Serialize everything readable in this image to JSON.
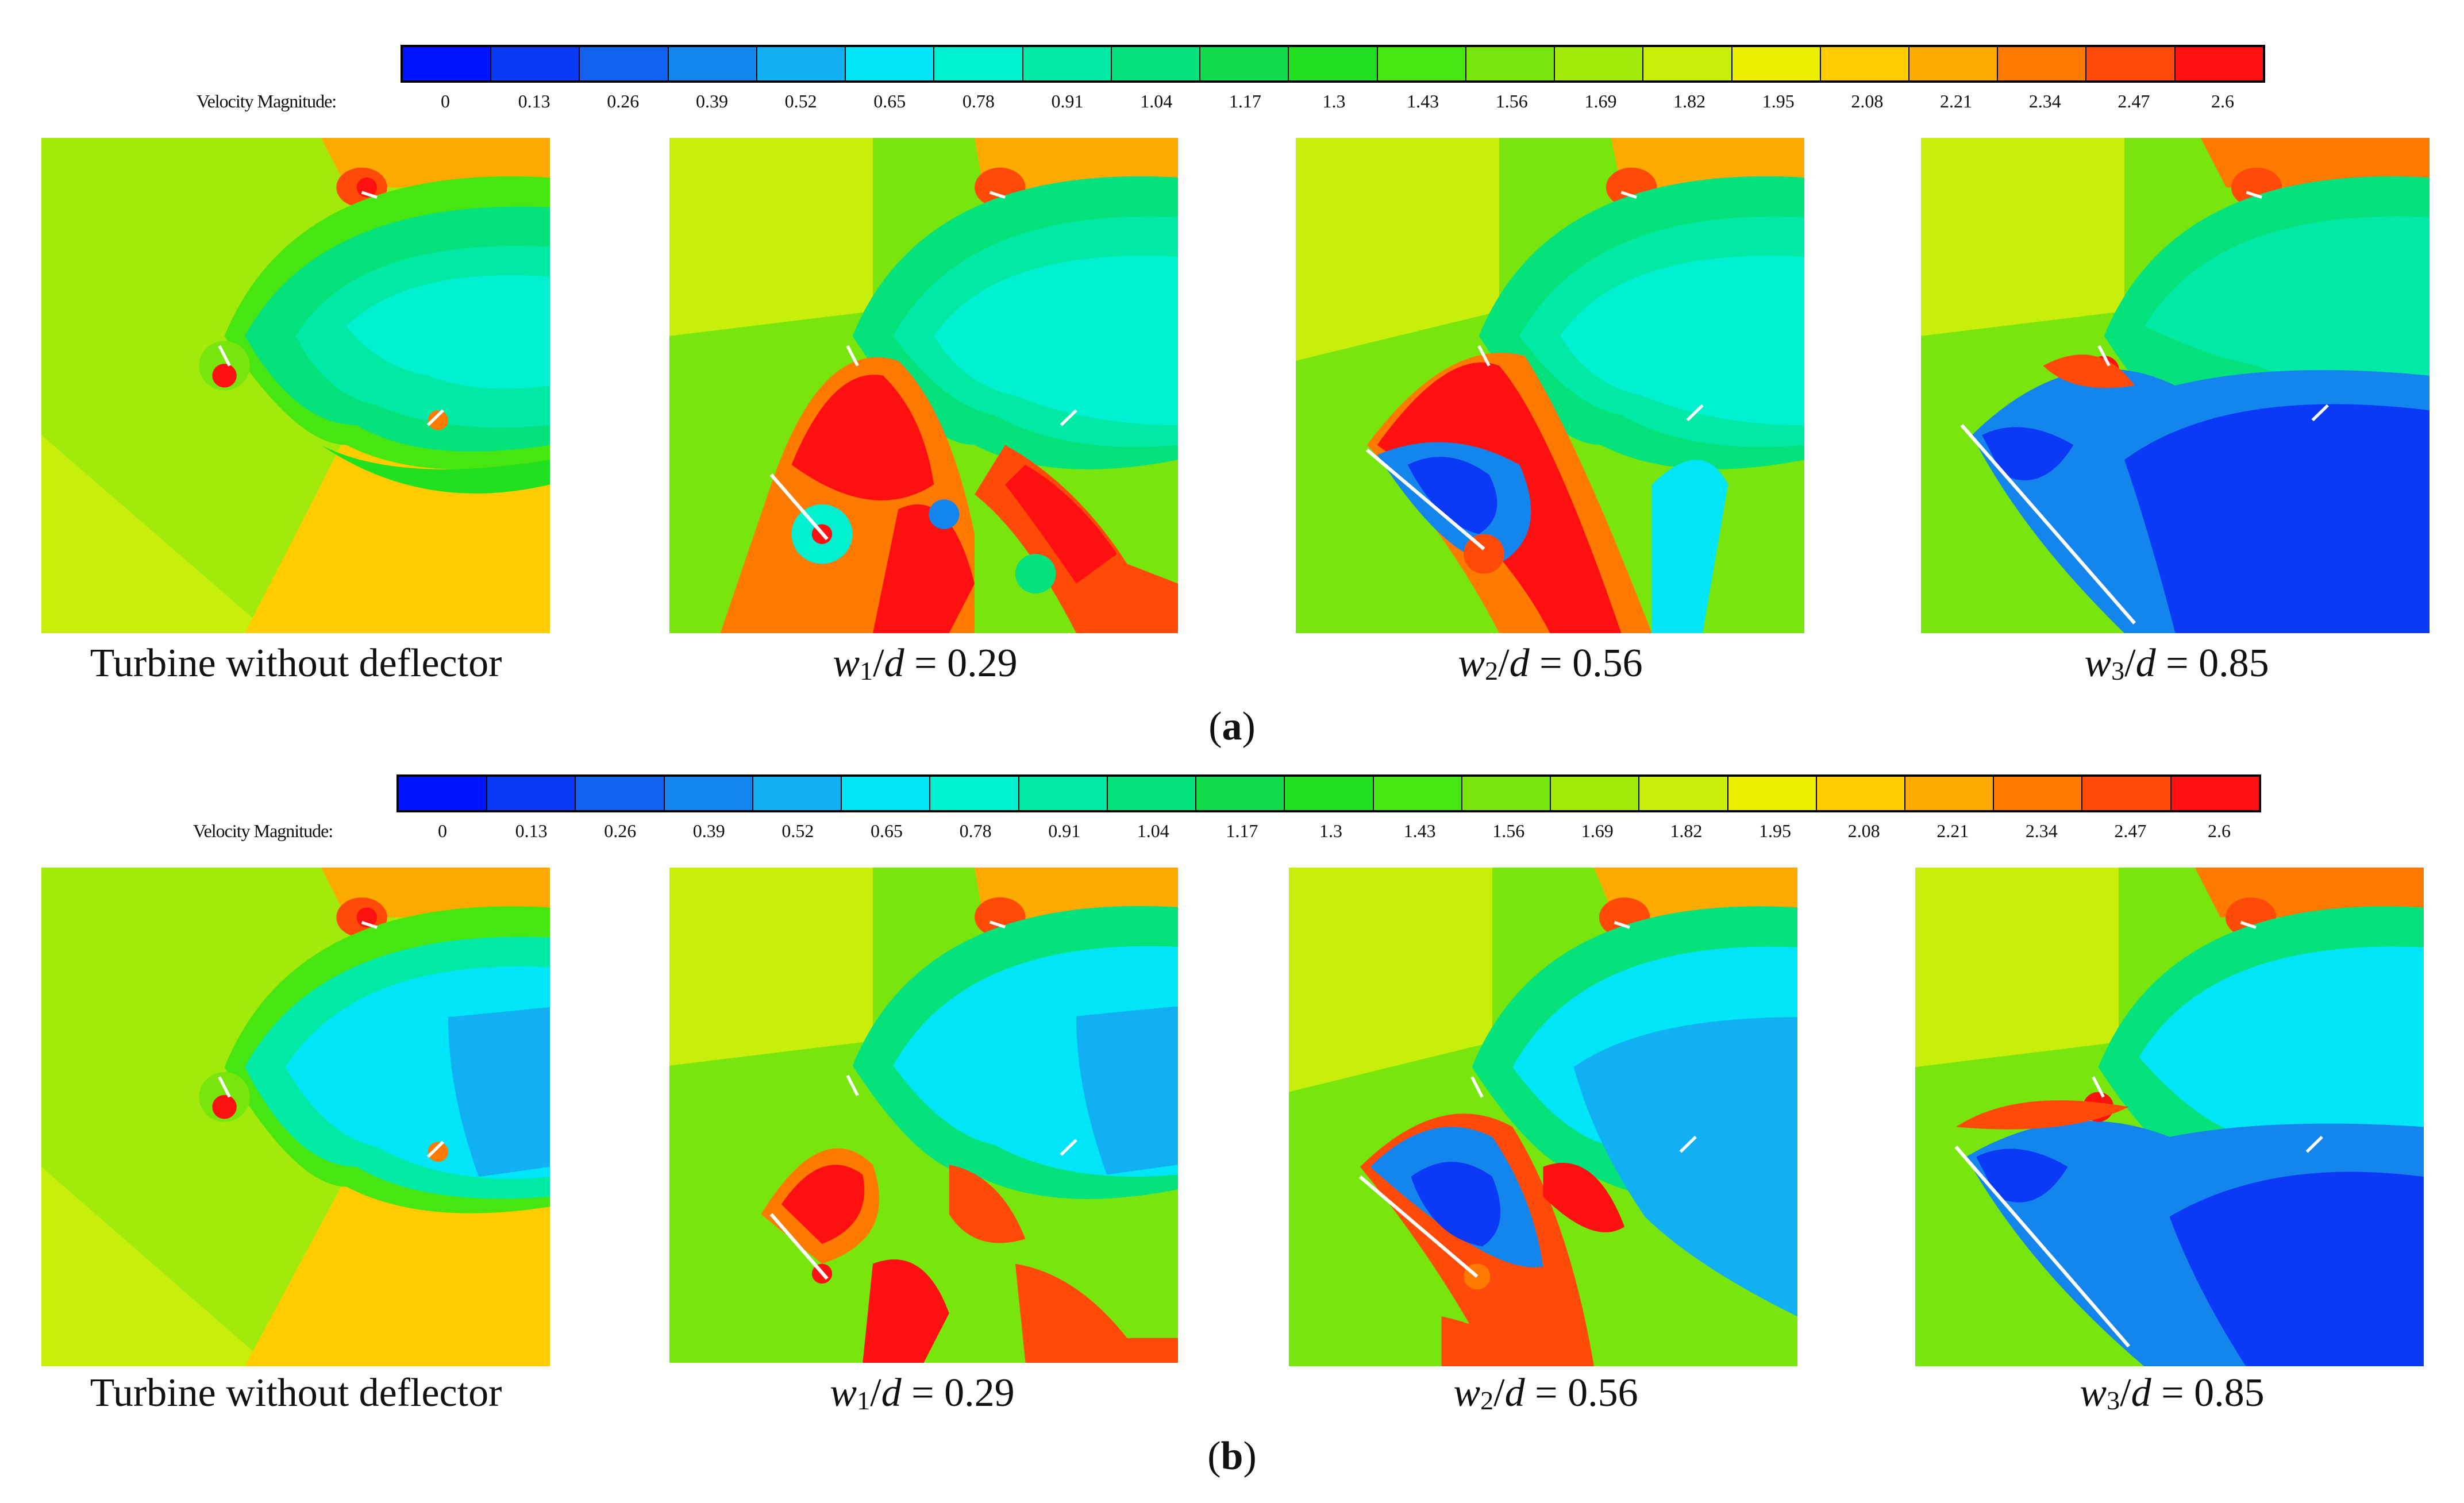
{
  "figure": {
    "colorbar": {
      "title": "Velocity Magnitude:",
      "ticks": [
        "0",
        "0.13",
        "0.26",
        "0.39",
        "0.52",
        "0.65",
        "0.78",
        "0.91",
        "1.04",
        "1.17",
        "1.3",
        "1.43",
        "1.56",
        "1.69",
        "1.82",
        "1.95",
        "2.08",
        "2.21",
        "2.34",
        "2.47",
        "2.6"
      ],
      "colors": [
        "#0014ff",
        "#0a3af5",
        "#1162f0",
        "#1585ee",
        "#10b0f2",
        "#00e6f8",
        "#00f0d0",
        "#00eaa6",
        "#05e27c",
        "#10dc4c",
        "#20e020",
        "#48e610",
        "#78e60c",
        "#a2ea0c",
        "#c8ee0c",
        "#eeee00",
        "#ffcc00",
        "#ffaa00",
        "#ff7a00",
        "#ff4a08",
        "#ff1010"
      ]
    },
    "rows": [
      {
        "label_paren_open": "(",
        "label_letter": "a",
        "label_paren_close": ")",
        "panels": [
          {
            "caption": "Turbine without deflector"
          },
          {
            "caption_var": "w",
            "caption_sub": "1",
            "caption_slash": "/",
            "caption_d": "d",
            "caption_value": " = 0.29"
          },
          {
            "caption_var": "w",
            "caption_sub": "2",
            "caption_slash": "/",
            "caption_d": "d",
            "caption_value": " = 0.56"
          },
          {
            "caption_var": "w",
            "caption_sub": "3",
            "caption_slash": "/",
            "caption_d": "d",
            "caption_value": " = 0.85"
          }
        ]
      },
      {
        "label_paren_open": "(",
        "label_letter": "b",
        "label_paren_close": ")",
        "panels": [
          {
            "caption": "Turbine without deflector"
          },
          {
            "caption_var": "w",
            "caption_sub": "1",
            "caption_slash": "/",
            "caption_d": "d",
            "caption_value": " = 0.29"
          },
          {
            "caption_var": "w",
            "caption_sub": "2",
            "caption_slash": "/",
            "caption_d": "d",
            "caption_value": " = 0.56"
          },
          {
            "caption_var": "w",
            "caption_sub": "3",
            "caption_slash": "/",
            "caption_d": "d",
            "caption_value": " = 0.85"
          }
        ]
      }
    ]
  }
}
